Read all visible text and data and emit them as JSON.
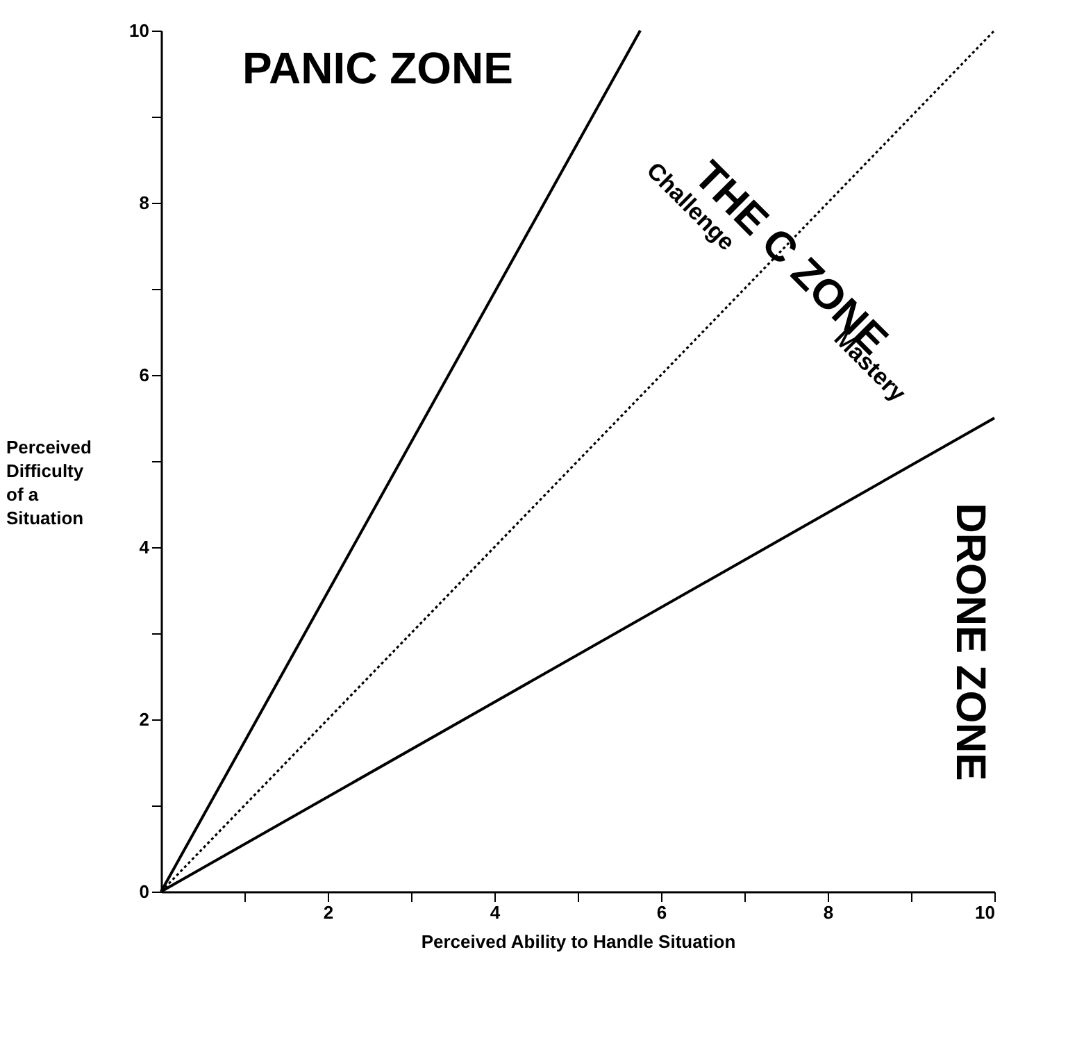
{
  "chart_data": {
    "type": "line",
    "xlabel": "Perceived Ability to Handle Situation",
    "ylabel": "Perceived Difficulty of a Situation",
    "xlim": [
      0,
      10
    ],
    "ylim": [
      0,
      10
    ],
    "xticks": [
      {
        "value": 1,
        "label": null
      },
      2,
      {
        "value": 3,
        "label": null
      },
      4,
      {
        "value": 5,
        "label": null
      },
      6,
      {
        "value": 7,
        "label": null
      },
      8,
      {
        "value": 9,
        "label": null
      },
      10
    ],
    "yticks": [
      0,
      {
        "value": 1,
        "label": null
      },
      2,
      {
        "value": 3,
        "label": null
      },
      4,
      {
        "value": 5,
        "label": null
      },
      6,
      {
        "value": 7,
        "label": null
      },
      8,
      {
        "value": 9,
        "label": null
      },
      10
    ],
    "series": [
      {
        "color": "#000000",
        "x": [
          0,
          5.75
        ],
        "values": [
          0,
          10
        ],
        "line_style": "solid"
      },
      {
        "color": "#000000",
        "x": [
          0,
          10
        ],
        "values": [
          0,
          10
        ],
        "line_style": "dotted"
      },
      {
        "color": "#000000",
        "x": [
          0,
          10
        ],
        "values": [
          0,
          5.5
        ],
        "line_style": "solid"
      }
    ],
    "annotations": [
      "PANIC ZONE",
      "THE C ZONE",
      "Challenge",
      "Mastery",
      "DRONE ZONE"
    ],
    "grid": false,
    "marker": "none"
  }
}
